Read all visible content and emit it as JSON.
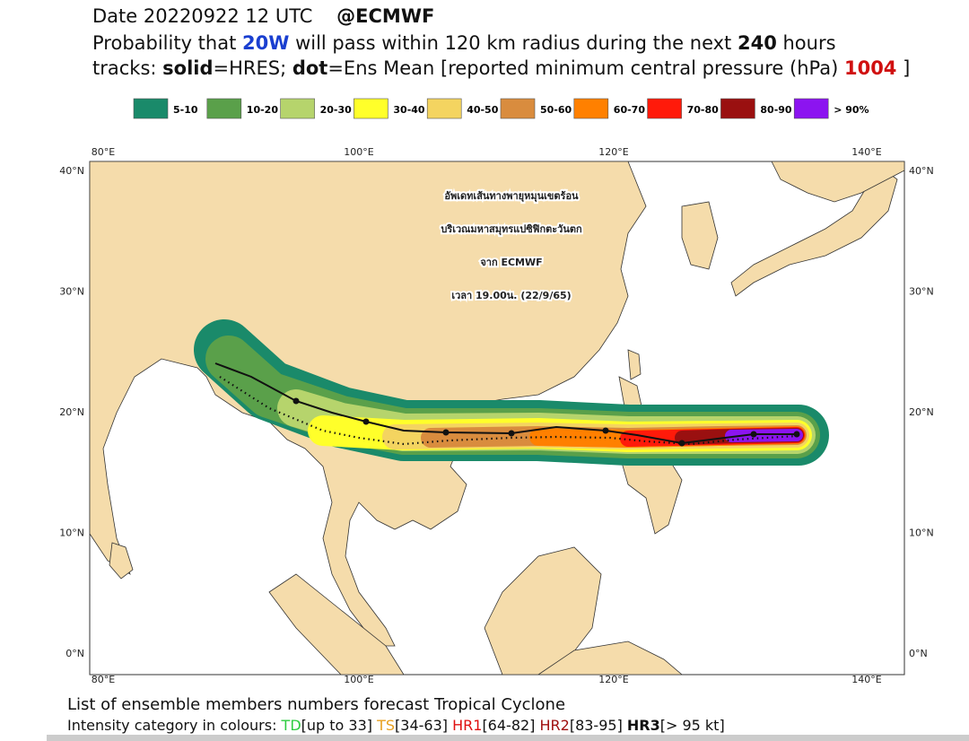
{
  "header": {
    "line1": [
      "Date 20220922 12 UTC",
      "@ECMWF"
    ],
    "line2": [
      "Probability that ",
      "20W",
      " will pass within 120 km radius during the next ",
      "240",
      " hours"
    ],
    "line3": [
      "tracks: ",
      "solid",
      "=HRES; ",
      "dot",
      "=Ens Mean [reported minimum central pressure (hPa) ",
      "1004",
      " ]"
    ]
  },
  "legend": [
    {
      "label": "5-10",
      "color": "#1a8a6a"
    },
    {
      "label": "10-20",
      "color": "#5aa04a"
    },
    {
      "label": "20-30",
      "color": "#b6d46c"
    },
    {
      "label": "30-40",
      "color": "#ffff2a"
    },
    {
      "label": "40-50",
      "color": "#f4d460"
    },
    {
      "label": "50-60",
      "color": "#d98c3e"
    },
    {
      "label": "60-70",
      "color": "#ff8000"
    },
    {
      "label": "70-80",
      "color": "#ff1a0a"
    },
    {
      "label": "80-90",
      "color": "#9a1010"
    },
    {
      "label": "> 90%",
      "color": "#8c14f0"
    }
  ],
  "map": {
    "lon_labels": [
      "80°E",
      "100°E",
      "120°E",
      "140°E"
    ],
    "lat_labels": [
      "40°N",
      "30°N",
      "20°N",
      "10°N",
      "0°N"
    ],
    "annotation": [
      "อัพเดทเส้นทางพายุหมุนเขตร้อน",
      "บริเวณมหาสมุทรแปซิฟิกตะวันตก",
      "จาก ECMWF",
      "เวลา 19.00น. (22/9/65)"
    ]
  },
  "footer": {
    "line1": "List of ensemble members numbers forecast Tropical Cyclone",
    "line2": [
      "Intensity category in colours: ",
      "TD",
      "[up to 33] ",
      "TS",
      "[34-63] ",
      "HR1",
      "[64-82] ",
      "HR2",
      "[83-95] ",
      "HR3",
      "[> 95 kt]"
    ]
  }
}
